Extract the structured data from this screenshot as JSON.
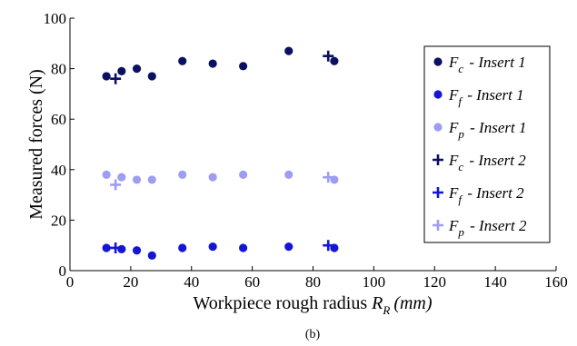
{
  "chart_data": {
    "type": "scatter",
    "xlabel": "Workpiece rough radius",
    "xlabel_symbol": "R",
    "xlabel_subscript": "R",
    "xlabel_unit": "(mm)",
    "ylabel": "Measured forces (N)",
    "xlim": [
      0,
      160
    ],
    "ylim": [
      0,
      100
    ],
    "xticks": [
      0,
      20,
      40,
      60,
      80,
      100,
      120,
      140,
      160
    ],
    "yticks": [
      0,
      20,
      40,
      60,
      80,
      100
    ],
    "grid": false,
    "legend_position": "right",
    "caption": "(b)",
    "series": [
      {
        "symbol": "F",
        "subscript": "c",
        "suffix": " - Insert 1",
        "marker": "circle",
        "color": "#0b1060",
        "points": [
          [
            12,
            77
          ],
          [
            17,
            79
          ],
          [
            22,
            80
          ],
          [
            27,
            77
          ],
          [
            37,
            83
          ],
          [
            47,
            82
          ],
          [
            57,
            81
          ],
          [
            72,
            87
          ],
          [
            87,
            83
          ]
        ]
      },
      {
        "symbol": "F",
        "subscript": "f",
        "suffix": " - Insert 1",
        "marker": "circle",
        "color": "#1515d6",
        "points": [
          [
            12,
            9
          ],
          [
            17,
            8.5
          ],
          [
            22,
            8
          ],
          [
            27,
            6
          ],
          [
            37,
            9
          ],
          [
            47,
            9.5
          ],
          [
            57,
            9
          ],
          [
            72,
            9.5
          ],
          [
            87,
            9
          ]
        ]
      },
      {
        "symbol": "F",
        "subscript": "p",
        "suffix": " - Insert 1",
        "marker": "circle",
        "color": "#9d9df2",
        "points": [
          [
            12,
            38
          ],
          [
            17,
            37
          ],
          [
            22,
            36
          ],
          [
            27,
            36
          ],
          [
            37,
            38
          ],
          [
            47,
            37
          ],
          [
            57,
            38
          ],
          [
            72,
            38
          ],
          [
            87,
            36
          ]
        ]
      },
      {
        "symbol": "F",
        "subscript": "c",
        "suffix": " - Insert 2",
        "marker": "plus",
        "color": "#0b1060",
        "points": [
          [
            15,
            76
          ],
          [
            85,
            85
          ]
        ]
      },
      {
        "symbol": "F",
        "subscript": "f",
        "suffix": " - Insert 2",
        "marker": "plus",
        "color": "#1515d6",
        "points": [
          [
            15,
            9
          ],
          [
            85,
            10
          ]
        ]
      },
      {
        "symbol": "F",
        "subscript": "p",
        "suffix": " - Insert 2",
        "marker": "plus",
        "color": "#9d9df2",
        "points": [
          [
            15,
            34
          ],
          [
            85,
            37
          ]
        ]
      }
    ]
  }
}
